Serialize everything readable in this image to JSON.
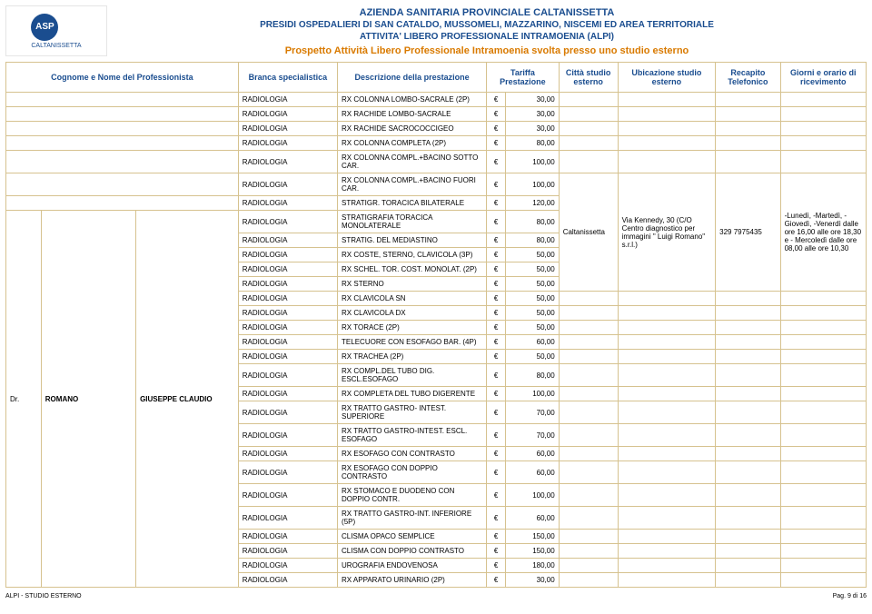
{
  "header": {
    "line1": "AZIENDA SANITARIA PROVINCIALE CALTANISSETTA",
    "line2": "PRESIDI OSPEDALIERI DI SAN CATALDO, MUSSOMELI, MAZZARINO, NISCEMI ED AREA TERRITORIALE",
    "line3": "ATTIVITA' LIBERO PROFESSIONALE INTRAMOENIA (ALPI)",
    "line4": "Prospetto Attività Libero Professionale Intramoenia svolta presso uno studio esterno",
    "logo_top": "ASP",
    "logo_bottom": "CALTANISSETTA"
  },
  "columns": {
    "cognome": "Cognome e Nome del Professionista",
    "branca": "Branca specialistica",
    "descrizione": "Descrizione della prestazione",
    "tariffa": "Tariffa Prestazione",
    "citta": "Città studio esterno",
    "ubicazione": "Ubicazione studio esterno",
    "recapito": "Recapito Telefonico",
    "orari": "Giorni e orario di ricevimento"
  },
  "professional": {
    "titolo": "Dr.",
    "cognome": "ROMANO",
    "nome": "GIUSEPPE CLAUDIO",
    "citta": "Caltanissetta",
    "ubicazione": "Via Kennedy, 30 (C/O Centro diagnostico per immagini \" Luigi Romano\" s.r.l.)",
    "telefono": "329 7975435",
    "orari": "-Lunedì, -Martedì, -Giovedì, -Venerdì dalle ore 16,00 alle ore 18,30 e - Mercoledì dalle ore 08,00 alle ore 10,30"
  },
  "branca_label": "RADIOLOGIA",
  "currency": "€",
  "rows": [
    {
      "desc": "RX COLONNA LOMBO-SACRALE (2P)",
      "price": "30,00"
    },
    {
      "desc": "RX RACHIDE LOMBO-SACRALE",
      "price": "30,00"
    },
    {
      "desc": "RX RACHIDE SACROCOCCIGEO",
      "price": "30,00"
    },
    {
      "desc": "RX COLONNA COMPLETA (2P)",
      "price": "80,00"
    },
    {
      "desc": "RX COLONNA COMPL.+BACINO SOTTO CAR.",
      "price": "100,00"
    },
    {
      "desc": "RX COLONNA COMPL.+BACINO FUORI CAR.",
      "price": "100,00"
    },
    {
      "desc": "STRATIGR. TORACICA BILATERALE",
      "price": "120,00"
    },
    {
      "desc": "STRATIGRAFIA TORACICA MONOLATERALE",
      "price": "80,00"
    },
    {
      "desc": "STRATIG. DEL MEDIASTINO",
      "price": "80,00"
    },
    {
      "desc": "RX COSTE, STERNO, CLAVICOLA (3P)",
      "price": "50,00"
    },
    {
      "desc": "RX SCHEL. TOR. COST. MONOLAT. (2P)",
      "price": "50,00"
    },
    {
      "desc": "RX STERNO",
      "price": "50,00"
    },
    {
      "desc": "RX CLAVICOLA SN",
      "price": "50,00"
    },
    {
      "desc": "RX CLAVICOLA DX",
      "price": "50,00"
    },
    {
      "desc": "RX TORACE (2P)",
      "price": "50,00"
    },
    {
      "desc": "TELECUORE CON ESOFAGO BAR. (4P)",
      "price": "60,00"
    },
    {
      "desc": "RX TRACHEA (2P)",
      "price": "50,00"
    },
    {
      "desc": "RX COMPL.DEL TUBO DIG. ESCL.ESOFAGO",
      "price": "80,00"
    },
    {
      "desc": "RX COMPLETA DEL TUBO DIGERENTE",
      "price": "100,00"
    },
    {
      "desc": "RX TRATTO GASTRO- INTEST. SUPERIORE",
      "price": "70,00"
    },
    {
      "desc": "RX TRATTO GASTRO-INTEST. ESCL. ESOFAGO",
      "price": "70,00"
    },
    {
      "desc": "RX ESOFAGO CON CONTRASTO",
      "price": "60,00"
    },
    {
      "desc": "RX ESOFAGO CON DOPPIO CONTRASTO",
      "price": "60,00"
    },
    {
      "desc": "RX STOMACO E DUODENO CON DOPPIO CONTR.",
      "price": "100,00"
    },
    {
      "desc": "RX TRATTO GASTRO-INT. INFERIORE (5P)",
      "price": "60,00"
    },
    {
      "desc": "CLISMA OPACO SEMPLICE",
      "price": "150,00"
    },
    {
      "desc": "CLISMA CON DOPPIO CONTRASTO",
      "price": "150,00"
    },
    {
      "desc": "UROGRAFIA ENDOVENOSA",
      "price": "180,00"
    },
    {
      "desc": "RX APPARATO URINARIO (2P)",
      "price": "30,00"
    }
  ],
  "row_count": 29,
  "prof_row_index": 7,
  "footer": {
    "left": "ALPI - STUDIO ESTERNO",
    "right": "Pag. 9 di 16"
  },
  "colors": {
    "heading_blue": "#1a4d8f",
    "heading_orange": "#d97a00",
    "border": "#d6c28f",
    "background": "#ffffff"
  }
}
